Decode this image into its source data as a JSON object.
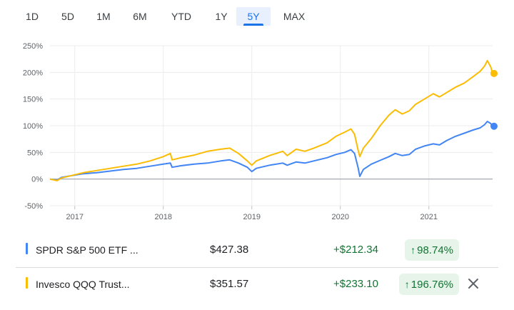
{
  "tabs": [
    "1D",
    "5D",
    "1M",
    "6M",
    "YTD",
    "1Y",
    "5Y",
    "MAX"
  ],
  "active_tab": "5Y",
  "colors": {
    "spdr": "#4285f4",
    "qqq": "#fbbc04",
    "gain_text": "#137333",
    "gain_bg": "#e6f4ea",
    "active_tab": "#1a73e8"
  },
  "chart_data": {
    "type": "line",
    "y_unit": "%",
    "y_ticks": [
      "250%",
      "200%",
      "150%",
      "100%",
      "50%",
      "0%",
      "-50%"
    ],
    "y_tick_values": [
      250,
      200,
      150,
      100,
      50,
      0,
      -50
    ],
    "ylim": [
      -50,
      250
    ],
    "x_ticks": [
      "2017",
      "2018",
      "2019",
      "2020",
      "2021"
    ],
    "x_tick_values": [
      2017,
      2018,
      2019,
      2020,
      2021
    ],
    "xlim": [
      2016.72,
      2021.72
    ],
    "baseline": 0,
    "grid": true,
    "series": [
      {
        "name": "SPDR S&P 500 ETF ...",
        "color": "#4285f4",
        "points": [
          [
            2016.72,
            0
          ],
          [
            2016.8,
            -2
          ],
          [
            2016.85,
            3
          ],
          [
            2016.95,
            6
          ],
          [
            2017.1,
            10
          ],
          [
            2017.25,
            12
          ],
          [
            2017.4,
            15
          ],
          [
            2017.55,
            18
          ],
          [
            2017.7,
            20
          ],
          [
            2017.85,
            24
          ],
          [
            2018.0,
            28
          ],
          [
            2018.08,
            30
          ],
          [
            2018.1,
            22
          ],
          [
            2018.2,
            25
          ],
          [
            2018.35,
            28
          ],
          [
            2018.5,
            30
          ],
          [
            2018.65,
            34
          ],
          [
            2018.75,
            36
          ],
          [
            2018.85,
            30
          ],
          [
            2018.95,
            22
          ],
          [
            2019.0,
            14
          ],
          [
            2019.05,
            20
          ],
          [
            2019.2,
            26
          ],
          [
            2019.35,
            30
          ],
          [
            2019.4,
            26
          ],
          [
            2019.5,
            32
          ],
          [
            2019.6,
            30
          ],
          [
            2019.7,
            34
          ],
          [
            2019.85,
            40
          ],
          [
            2019.95,
            46
          ],
          [
            2020.05,
            50
          ],
          [
            2020.12,
            55
          ],
          [
            2020.16,
            48
          ],
          [
            2020.2,
            22
          ],
          [
            2020.22,
            5
          ],
          [
            2020.26,
            18
          ],
          [
            2020.35,
            28
          ],
          [
            2020.45,
            35
          ],
          [
            2020.55,
            42
          ],
          [
            2020.62,
            48
          ],
          [
            2020.7,
            44
          ],
          [
            2020.78,
            46
          ],
          [
            2020.85,
            56
          ],
          [
            2020.95,
            62
          ],
          [
            2021.05,
            66
          ],
          [
            2021.12,
            64
          ],
          [
            2021.2,
            72
          ],
          [
            2021.3,
            80
          ],
          [
            2021.4,
            86
          ],
          [
            2021.5,
            92
          ],
          [
            2021.58,
            96
          ],
          [
            2021.63,
            102
          ],
          [
            2021.66,
            108
          ],
          [
            2021.7,
            104
          ],
          [
            2021.72,
            99
          ]
        ]
      },
      {
        "name": "Invesco QQQ Trust...",
        "color": "#fbbc04",
        "points": [
          [
            2016.72,
            0
          ],
          [
            2016.8,
            -3
          ],
          [
            2016.85,
            2
          ],
          [
            2016.95,
            6
          ],
          [
            2017.1,
            12
          ],
          [
            2017.25,
            16
          ],
          [
            2017.4,
            20
          ],
          [
            2017.55,
            24
          ],
          [
            2017.7,
            28
          ],
          [
            2017.85,
            34
          ],
          [
            2018.0,
            42
          ],
          [
            2018.08,
            48
          ],
          [
            2018.1,
            36
          ],
          [
            2018.2,
            40
          ],
          [
            2018.35,
            45
          ],
          [
            2018.5,
            52
          ],
          [
            2018.65,
            56
          ],
          [
            2018.75,
            58
          ],
          [
            2018.85,
            48
          ],
          [
            2018.95,
            34
          ],
          [
            2019.0,
            26
          ],
          [
            2019.05,
            34
          ],
          [
            2019.2,
            44
          ],
          [
            2019.35,
            52
          ],
          [
            2019.4,
            44
          ],
          [
            2019.5,
            56
          ],
          [
            2019.6,
            52
          ],
          [
            2019.7,
            58
          ],
          [
            2019.85,
            68
          ],
          [
            2019.95,
            80
          ],
          [
            2020.05,
            88
          ],
          [
            2020.12,
            94
          ],
          [
            2020.16,
            84
          ],
          [
            2020.2,
            55
          ],
          [
            2020.22,
            42
          ],
          [
            2020.26,
            58
          ],
          [
            2020.35,
            76
          ],
          [
            2020.45,
            100
          ],
          [
            2020.55,
            120
          ],
          [
            2020.62,
            130
          ],
          [
            2020.7,
            122
          ],
          [
            2020.78,
            128
          ],
          [
            2020.85,
            140
          ],
          [
            2020.95,
            150
          ],
          [
            2021.05,
            160
          ],
          [
            2021.12,
            154
          ],
          [
            2021.2,
            162
          ],
          [
            2021.3,
            172
          ],
          [
            2021.4,
            180
          ],
          [
            2021.5,
            192
          ],
          [
            2021.58,
            202
          ],
          [
            2021.63,
            212
          ],
          [
            2021.66,
            222
          ],
          [
            2021.7,
            210
          ],
          [
            2021.72,
            198
          ]
        ]
      }
    ]
  },
  "rows": [
    {
      "name": "SPDR S&P 500 ETF ...",
      "price": "$427.38",
      "change": "+$212.34",
      "arrow": "↑",
      "pct": "98.74%",
      "color": "#4285f4"
    },
    {
      "name": "Invesco QQQ Trust...",
      "price": "$351.57",
      "change": "+$233.10",
      "arrow": "↑",
      "pct": "196.76%",
      "color": "#fbbc04",
      "close_icon": "close-icon"
    }
  ]
}
